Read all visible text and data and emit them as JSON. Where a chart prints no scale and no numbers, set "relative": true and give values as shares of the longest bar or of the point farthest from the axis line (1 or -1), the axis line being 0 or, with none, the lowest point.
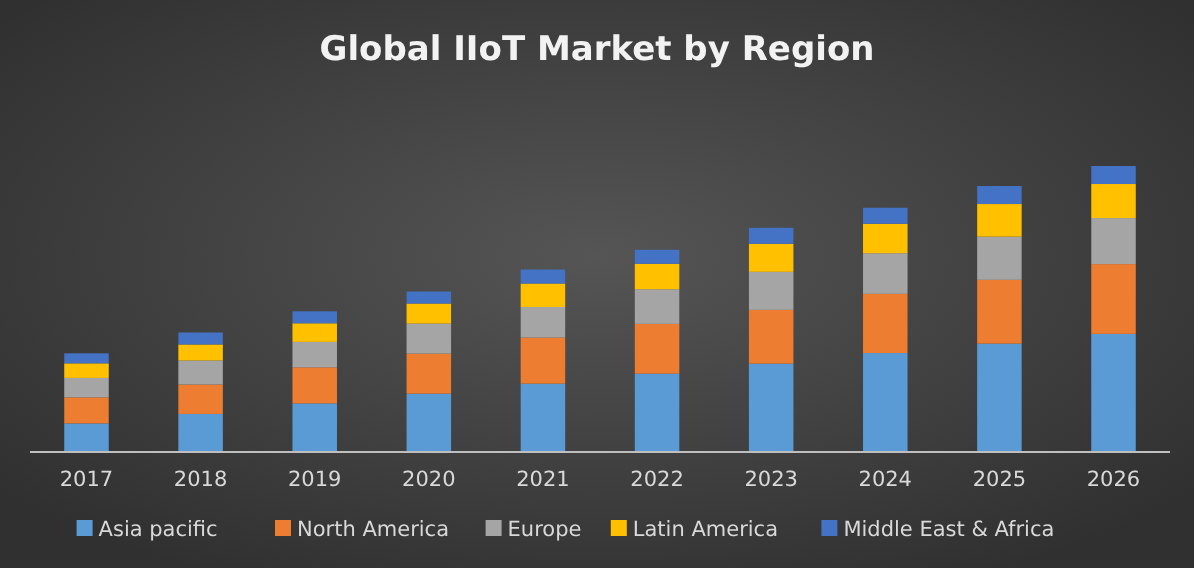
{
  "chart_data": {
    "type": "bar",
    "title": "Global IIoT Market by Region",
    "stacked": true,
    "relative": true,
    "legend": "bottom",
    "categories": [
      "2017",
      "2018",
      "2019",
      "2020",
      "2021",
      "2022",
      "2023",
      "2024",
      "2025",
      "2026"
    ],
    "series": [
      {
        "name": "Asia pacific",
        "color": "#5b9bd5",
        "values": [
          0.1,
          0.133,
          0.17,
          0.204,
          0.239,
          0.274,
          0.309,
          0.346,
          0.379,
          0.413
        ]
      },
      {
        "name": "North America",
        "color": "#ed7d31",
        "values": [
          0.091,
          0.103,
          0.126,
          0.14,
          0.161,
          0.174,
          0.188,
          0.207,
          0.223,
          0.244
        ]
      },
      {
        "name": "Europe",
        "color": "#a5a5a5",
        "values": [
          0.068,
          0.084,
          0.089,
          0.105,
          0.107,
          0.121,
          0.133,
          0.142,
          0.151,
          0.161
        ]
      },
      {
        "name": "Latin America",
        "color": "#ffc000",
        "values": [
          0.051,
          0.056,
          0.065,
          0.07,
          0.082,
          0.089,
          0.098,
          0.103,
          0.114,
          0.119
        ]
      },
      {
        "name": "Middle East & Africa",
        "color": "#4472c4",
        "values": [
          0.035,
          0.042,
          0.042,
          0.042,
          0.049,
          0.049,
          0.056,
          0.056,
          0.063,
          0.063
        ]
      }
    ]
  }
}
